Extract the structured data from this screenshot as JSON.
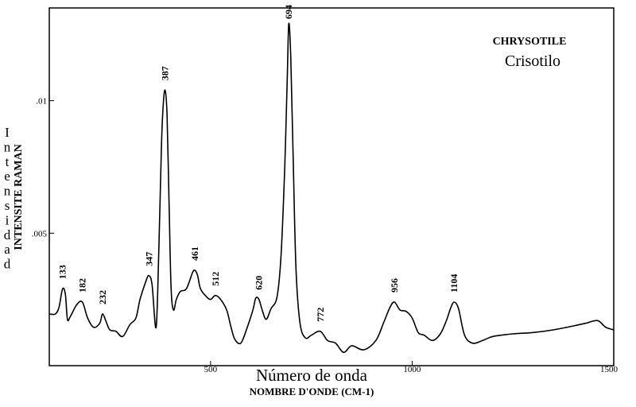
{
  "chart_data": {
    "type": "line",
    "title": "CHRYSOTILE",
    "subtitle": "Crisotilo",
    "xlabel_es": "Número de onda",
    "xlabel_fr": "NOMBRE D'ONDE (CM-1)",
    "ylabel_es": "Intensidad",
    "ylabel_fr": "INTENSITE RAMAN",
    "xlim": [
      100,
      1500
    ],
    "ylim": [
      0.0,
      0.0135
    ],
    "x_ticks": [
      {
        "value": 500,
        "label": "500"
      },
      {
        "value": 1000,
        "label": "1000"
      },
      {
        "value": 1500,
        "label": "1500"
      }
    ],
    "y_ticks": [
      {
        "value": 0.005,
        "label": ".005"
      },
      {
        "value": 0.01,
        "label": ".01"
      }
    ],
    "grid": false,
    "series": [
      {
        "x": [
          100,
          115,
          124,
          133,
          140,
          145,
          152,
          168,
          182,
          195,
          210,
          225,
          232,
          240,
          250,
          265,
          282,
          300,
          315,
          325,
          340,
          347,
          355,
          365,
          372,
          378,
          382,
          387,
          392,
          397,
          402,
          408,
          415,
          425,
          440,
          455,
          461,
          468,
          475,
          490,
          500,
          512,
          525,
          540,
          550,
          560,
          575,
          590,
          605,
          612,
          620,
          628,
          638,
          650,
          665,
          675,
          684,
          690,
          694,
          699,
          705,
          712,
          722,
          735,
          750,
          772,
          790,
          810,
          830,
          850,
          880,
          910,
          930,
          945,
          956,
          970,
          985,
          1000,
          1015,
          1030,
          1050,
          1070,
          1085,
          1095,
          1104,
          1115,
          1130,
          1150,
          1175,
          1200,
          1250,
          1300,
          1350,
          1400,
          1430,
          1460,
          1480,
          1500
        ],
        "y": [
          0.00195,
          0.00195,
          0.0022,
          0.0029,
          0.00268,
          0.00175,
          0.00185,
          0.0023,
          0.0024,
          0.0018,
          0.00145,
          0.0016,
          0.00195,
          0.0017,
          0.00135,
          0.0013,
          0.0011,
          0.00155,
          0.0018,
          0.0025,
          0.0032,
          0.0034,
          0.00305,
          0.00145,
          0.0045,
          0.0082,
          0.0097,
          0.0104,
          0.0095,
          0.0062,
          0.00295,
          0.0021,
          0.0025,
          0.0028,
          0.0029,
          0.0035,
          0.0036,
          0.0034,
          0.0029,
          0.0026,
          0.0025,
          0.00265,
          0.0025,
          0.0021,
          0.0015,
          0.001,
          0.00085,
          0.0014,
          0.0021,
          0.00255,
          0.0025,
          0.0021,
          0.00175,
          0.00215,
          0.0026,
          0.0042,
          0.0075,
          0.0107,
          0.0129,
          0.0116,
          0.0078,
          0.0036,
          0.0016,
          0.00105,
          0.00115,
          0.0013,
          0.00095,
          0.00085,
          0.0005,
          0.00075,
          0.0006,
          0.00095,
          0.00165,
          0.0022,
          0.0024,
          0.0021,
          0.00205,
          0.0018,
          0.00125,
          0.00115,
          0.00095,
          0.0012,
          0.0017,
          0.00215,
          0.0024,
          0.00215,
          0.00115,
          0.00085,
          0.00095,
          0.0011,
          0.0012,
          0.00125,
          0.00135,
          0.0015,
          0.0016,
          0.0017,
          0.00145,
          0.00135
        ]
      }
    ],
    "annotations": [
      {
        "x": 133,
        "text": "133"
      },
      {
        "x": 182,
        "text": "182"
      },
      {
        "x": 232,
        "text": "232"
      },
      {
        "x": 347,
        "text": "347"
      },
      {
        "x": 387,
        "text": "387"
      },
      {
        "x": 461,
        "text": "461"
      },
      {
        "x": 512,
        "text": "512"
      },
      {
        "x": 620,
        "text": "620"
      },
      {
        "x": 694,
        "text": "694"
      },
      {
        "x": 772,
        "text": "772"
      },
      {
        "x": 956,
        "text": "956"
      },
      {
        "x": 1104,
        "text": "1104"
      }
    ]
  }
}
